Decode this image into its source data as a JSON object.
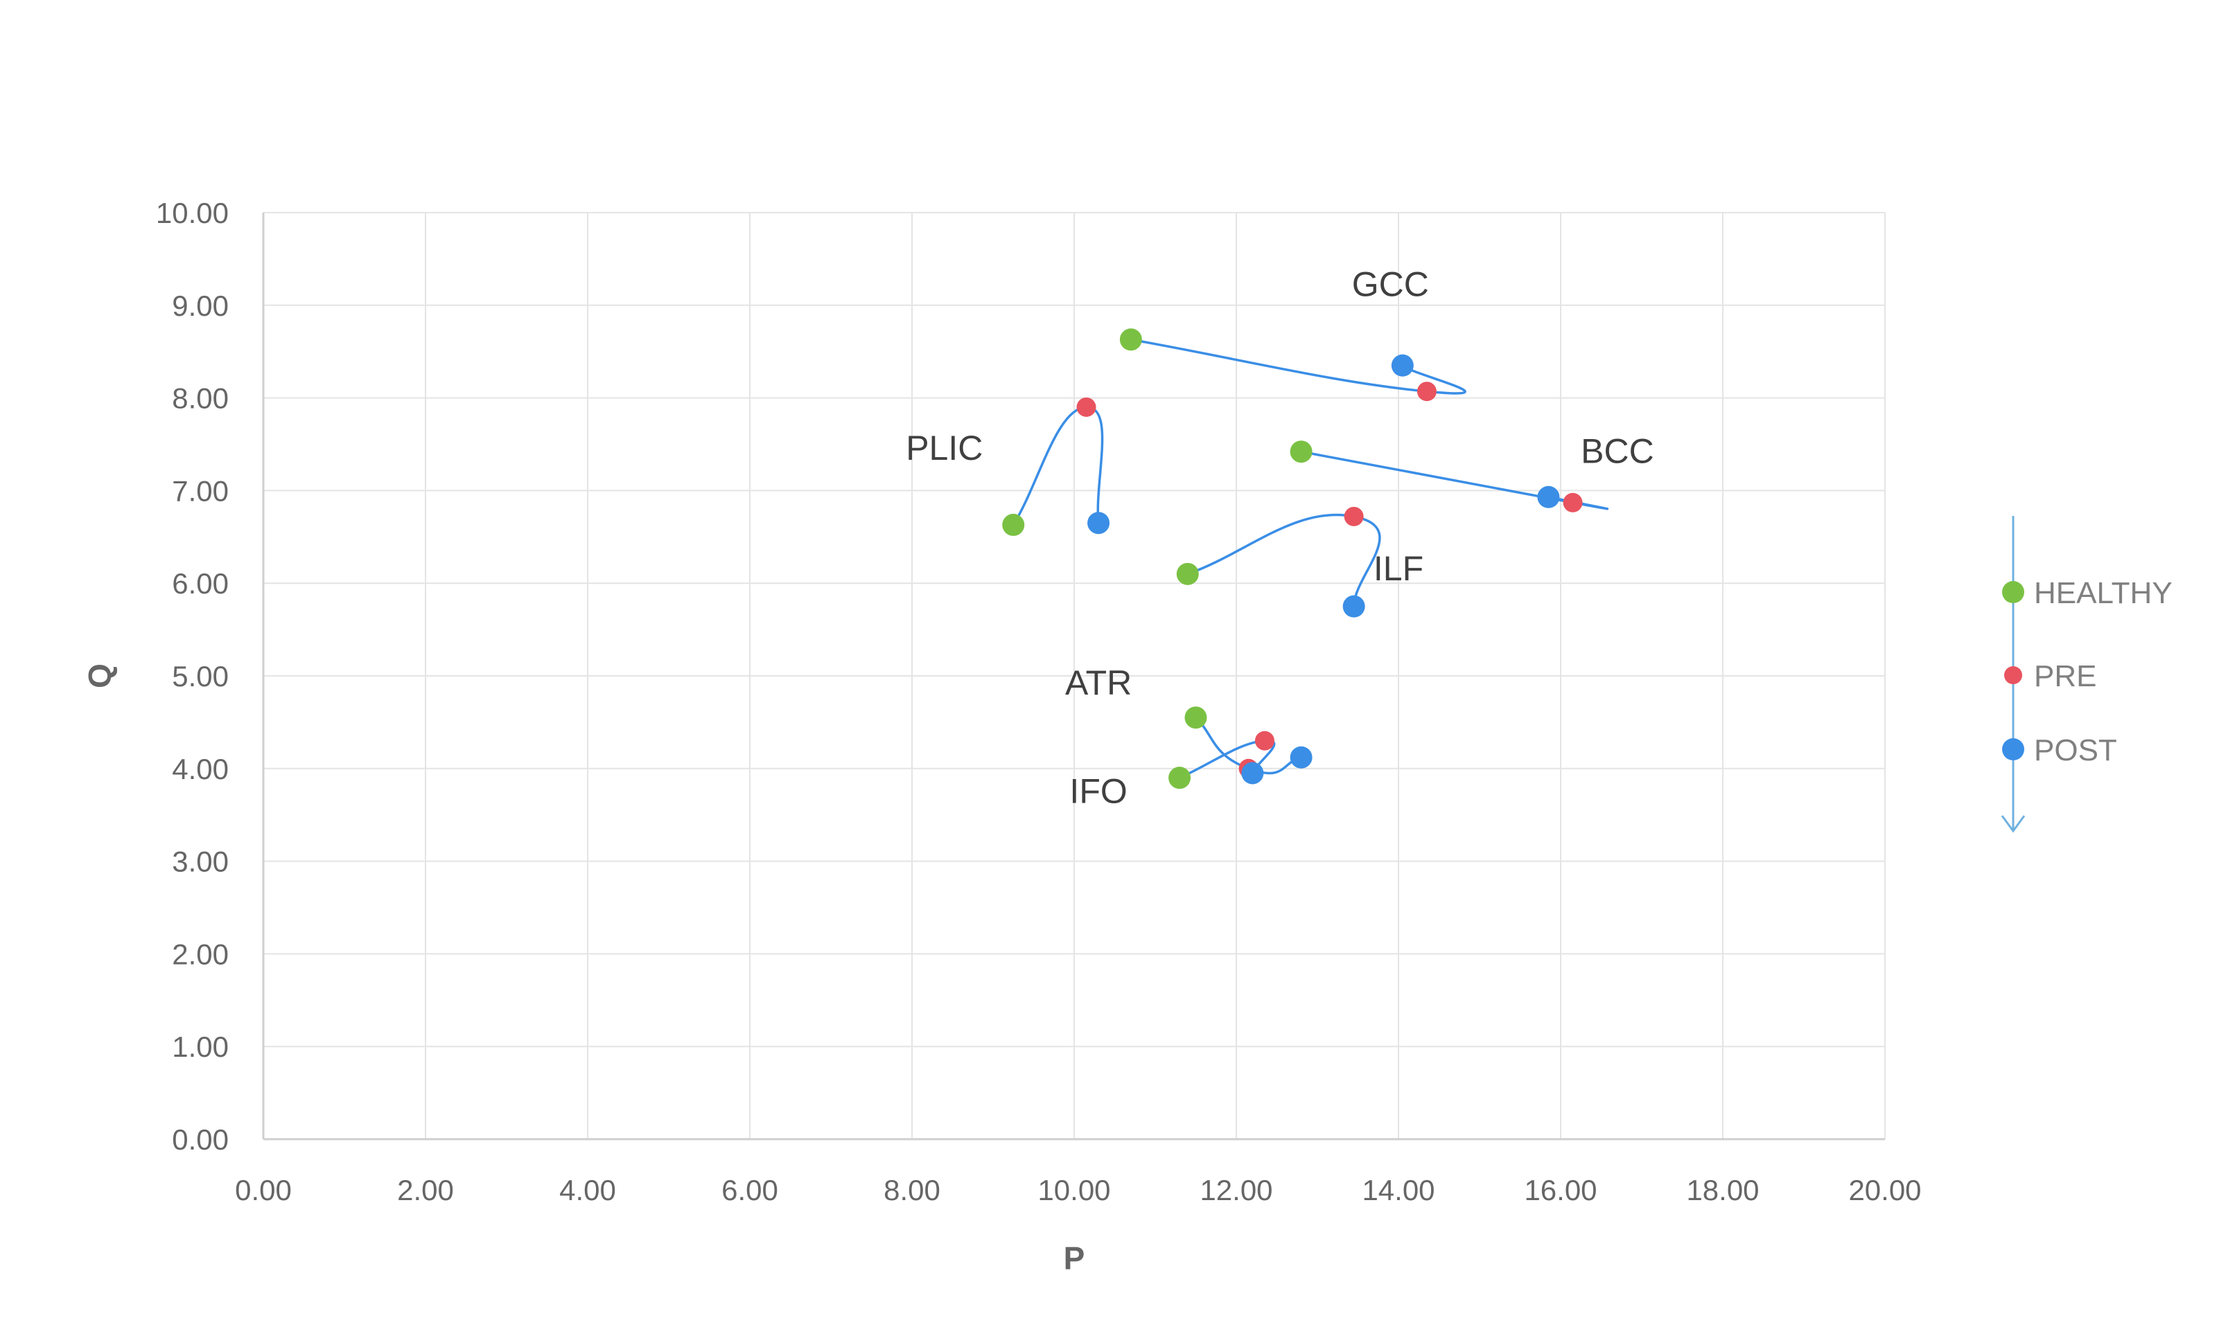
{
  "chart_data": {
    "type": "scatter",
    "xlabel": "P",
    "ylabel": "Q",
    "xlim": [
      0,
      20
    ],
    "ylim": [
      0,
      10
    ],
    "x_ticks": [
      "0.00",
      "2.00",
      "4.00",
      "6.00",
      "8.00",
      "10.00",
      "12.00",
      "14.00",
      "16.00",
      "18.00",
      "20.00"
    ],
    "y_ticks": [
      "0.00",
      "1.00",
      "2.00",
      "3.00",
      "4.00",
      "5.00",
      "6.00",
      "7.00",
      "8.00",
      "9.00",
      "10.00"
    ],
    "grid": true,
    "legend": {
      "placement": "right",
      "entries": [
        {
          "name": "HEALTHY",
          "color": "#7ac143"
        },
        {
          "name": "PRE",
          "color": "#e8535f"
        },
        {
          "name": "POST",
          "color": "#3a8ee6"
        }
      ],
      "arrow_color": "#6fb1e0"
    },
    "line_color": "#3a8ee6",
    "tracts": [
      {
        "name": "GCC",
        "healthy": [
          10.7,
          8.63
        ],
        "pre": [
          14.35,
          8.07
        ],
        "post": [
          14.05,
          8.35
        ],
        "label_at": [
          13.9,
          9.1
        ]
      },
      {
        "name": "BCC",
        "healthy": [
          12.8,
          7.42
        ],
        "pre": [
          16.15,
          6.87
        ],
        "post": [
          15.85,
          6.93
        ],
        "label_at": [
          16.7,
          7.3
        ]
      },
      {
        "name": "PLIC",
        "healthy": [
          9.25,
          6.63
        ],
        "pre": [
          10.15,
          7.9
        ],
        "post": [
          10.3,
          6.65
        ],
        "label_at": [
          8.4,
          7.33
        ]
      },
      {
        "name": "ILF",
        "healthy": [
          11.4,
          6.1
        ],
        "pre": [
          13.45,
          6.72
        ],
        "post": [
          13.45,
          5.75
        ],
        "label_at": [
          14.0,
          6.03
        ]
      },
      {
        "name": "ATR",
        "healthy": [
          11.5,
          4.55
        ],
        "pre": [
          12.15,
          4.0
        ],
        "post": [
          12.8,
          4.12
        ],
        "label_at": [
          10.3,
          4.8
        ]
      },
      {
        "name": "IFO",
        "healthy": [
          11.3,
          3.9
        ],
        "pre": [
          12.35,
          4.3
        ],
        "post": [
          12.2,
          3.95
        ],
        "label_at": [
          10.3,
          3.63
        ]
      }
    ]
  }
}
